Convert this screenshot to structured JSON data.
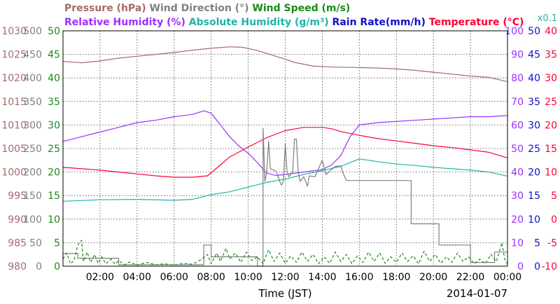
{
  "chart_data": {
    "type": "line",
    "legend_row1": [
      {
        "text": "Pressure (hPa)",
        "color": "#a36b6b"
      },
      {
        "text": "Wind Direction (°)",
        "color": "#808080"
      },
      {
        "text": "Wind Speed (m/s)",
        "color": "#1a8a1a"
      }
    ],
    "legend_row2": [
      {
        "text": "Relative Humidity (%)",
        "color": "#9b30ff"
      },
      {
        "text": "Absolute Humidity (g/m³)",
        "color": "#20b2aa"
      },
      {
        "text": "Rain Rate(mm/h)",
        "color": "#1010cc"
      },
      {
        "text": "Temperature (°C)",
        "color": "#ff0033"
      }
    ],
    "rain_scale_note": "x0.1",
    "xlabel": "Time (JST)",
    "date": "2014-01-07",
    "x_range_hours": [
      0,
      24
    ],
    "x_ticks": [
      "02:00",
      "04:00",
      "06:00",
      "08:00",
      "10:00",
      "12:00",
      "14:00",
      "16:00",
      "18:00",
      "20:00",
      "22:00",
      "00:00"
    ],
    "left_axes": [
      {
        "name": "pressure",
        "color": "#a36b6b",
        "ticks": [
          "980",
          "985",
          "990",
          "995",
          "1000",
          "1005",
          "1010",
          "1015",
          "1020",
          "1025",
          "1030"
        ],
        "range": [
          980,
          1030
        ]
      },
      {
        "name": "wind_direction",
        "color": "#808080",
        "ticks": [
          "0",
          "50",
          "100",
          "150",
          "200",
          "250",
          "300",
          "350",
          "400",
          "450",
          "500"
        ],
        "range": [
          0,
          500
        ]
      },
      {
        "name": "wind_speed",
        "color": "#1a8a1a",
        "ticks": [
          "0",
          "5",
          "10",
          "15",
          "20",
          "25",
          "30",
          "35",
          "40",
          "45",
          "50"
        ],
        "range": [
          0,
          50
        ]
      }
    ],
    "right_axes": [
      {
        "name": "relative_humidity",
        "color": "#9b30ff",
        "ticks": [
          "0",
          "10",
          "20",
          "30",
          "40",
          "50",
          "60",
          "70",
          "80",
          "90",
          "100"
        ],
        "range": [
          0,
          100
        ]
      },
      {
        "name": "rain_rate",
        "color": "#1010cc",
        "ticks": [
          "0",
          "5",
          "10",
          "15",
          "20",
          "25",
          "30",
          "35",
          "40",
          "45",
          "50"
        ],
        "range": [
          0,
          50
        ]
      },
      {
        "name": "temperature",
        "color": "#ff0033",
        "ticks": [
          "-10",
          "-5",
          "0",
          "5",
          "10",
          "15",
          "20",
          "25",
          "30",
          "35",
          "40"
        ],
        "range": [
          -10,
          40
        ]
      }
    ],
    "grid": true,
    "series": [
      {
        "name": "Pressure (hPa)",
        "axis": "pressure",
        "color": "#a36b6b",
        "points": [
          [
            0,
            1023.5
          ],
          [
            1,
            1023.2
          ],
          [
            2,
            1023.6
          ],
          [
            3,
            1024.2
          ],
          [
            4,
            1024.6
          ],
          [
            5,
            1025.0
          ],
          [
            6,
            1025.4
          ],
          [
            7,
            1025.9
          ],
          [
            8,
            1026.3
          ],
          [
            9,
            1026.6
          ],
          [
            9.7,
            1026.5
          ],
          [
            10.5,
            1025.8
          ],
          [
            11.5,
            1024.6
          ],
          [
            12.5,
            1023.3
          ],
          [
            13.5,
            1022.5
          ],
          [
            14.5,
            1022.3
          ],
          [
            16,
            1022.2
          ],
          [
            17,
            1022.1
          ],
          [
            18,
            1021.9
          ],
          [
            19,
            1021.6
          ],
          [
            20,
            1021.2
          ],
          [
            21,
            1020.8
          ],
          [
            22,
            1020.4
          ],
          [
            23,
            1020.1
          ],
          [
            24,
            1019.2
          ]
        ]
      },
      {
        "name": "Relative Humidity (%)",
        "axis": "relative_humidity",
        "color": "#9b30ff",
        "points": [
          [
            0,
            53
          ],
          [
            1,
            55
          ],
          [
            2,
            57
          ],
          [
            3,
            59
          ],
          [
            4,
            61
          ],
          [
            5,
            62
          ],
          [
            6,
            63.5
          ],
          [
            7,
            64.5
          ],
          [
            7.6,
            66
          ],
          [
            8,
            65
          ],
          [
            8.5,
            60
          ],
          [
            9,
            55
          ],
          [
            9.5,
            51
          ],
          [
            10,
            48
          ],
          [
            10.5,
            44
          ],
          [
            11,
            39.5
          ],
          [
            11.5,
            38.5
          ],
          [
            12,
            39
          ],
          [
            13,
            40
          ],
          [
            14,
            41
          ],
          [
            14.5,
            43
          ],
          [
            15,
            47
          ],
          [
            15.5,
            55
          ],
          [
            16,
            60
          ],
          [
            17,
            61
          ],
          [
            18,
            61.5
          ],
          [
            19,
            62
          ],
          [
            20,
            62.5
          ],
          [
            21,
            63
          ],
          [
            22,
            63.5
          ],
          [
            23,
            63.5
          ],
          [
            24,
            64
          ]
        ]
      },
      {
        "name": "Absolute Humidity (g/m³)",
        "axis": "wind_speed",
        "color": "#20b2aa",
        "points": [
          [
            0,
            13.8
          ],
          [
            2,
            14.1
          ],
          [
            4,
            14.2
          ],
          [
            6,
            14.0
          ],
          [
            7,
            14.2
          ],
          [
            8,
            15.2
          ],
          [
            9,
            15.8
          ],
          [
            10,
            16.8
          ],
          [
            11,
            17.8
          ],
          [
            12,
            18.5
          ],
          [
            13,
            19.5
          ],
          [
            14,
            20.3
          ],
          [
            15,
            21.2
          ],
          [
            16,
            22.8
          ],
          [
            17,
            22.2
          ],
          [
            18,
            21.7
          ],
          [
            19,
            21.4
          ],
          [
            20,
            21.0
          ],
          [
            21,
            20.7
          ],
          [
            22,
            20.4
          ],
          [
            23,
            20.0
          ],
          [
            24,
            19.1
          ]
        ]
      },
      {
        "name": "Temperature (°C)",
        "axis": "temperature",
        "color": "#ff0033",
        "points": [
          [
            0,
            11
          ],
          [
            1,
            10.7
          ],
          [
            2,
            10.4
          ],
          [
            3,
            10.0
          ],
          [
            4,
            9.6
          ],
          [
            5,
            9.2
          ],
          [
            6,
            8.9
          ],
          [
            7,
            8.9
          ],
          [
            7.8,
            9.2
          ],
          [
            8.5,
            11.5
          ],
          [
            9,
            13.2
          ],
          [
            10,
            15.3
          ],
          [
            11,
            17.3
          ],
          [
            12,
            18.8
          ],
          [
            13,
            19.5
          ],
          [
            14,
            19.5
          ],
          [
            14.5,
            19.2
          ],
          [
            15,
            18.6
          ],
          [
            16,
            17.8
          ],
          [
            17,
            17.1
          ],
          [
            18,
            16.6
          ],
          [
            19,
            16.1
          ],
          [
            20,
            15.6
          ],
          [
            21,
            15.2
          ],
          [
            22,
            14.7
          ],
          [
            23,
            14.2
          ],
          [
            24,
            13.0
          ]
        ]
      },
      {
        "name": "Wind Direction (°)",
        "axis": "wind_direction",
        "color": "#808080",
        "points": [
          [
            0,
            27
          ],
          [
            0.8,
            27
          ],
          [
            0.8,
            17
          ],
          [
            2.5,
            17
          ],
          [
            3,
            17
          ],
          [
            3,
            3
          ],
          [
            7.6,
            3
          ],
          [
            7.6,
            45
          ],
          [
            8.0,
            45
          ],
          [
            8.0,
            20
          ],
          [
            10.5,
            20
          ],
          [
            10.5,
            0
          ],
          [
            10.8,
            0
          ],
          [
            10.8,
            293
          ],
          [
            10.9,
            180
          ],
          [
            11.0,
            200
          ],
          [
            11.1,
            265
          ],
          [
            11.2,
            207
          ],
          [
            11.5,
            202
          ],
          [
            11.7,
            180
          ],
          [
            11.8,
            172
          ],
          [
            11.9,
            180
          ],
          [
            12.0,
            260
          ],
          [
            12.1,
            200
          ],
          [
            12.2,
            190
          ],
          [
            12.4,
            200
          ],
          [
            12.5,
            270
          ],
          [
            12.6,
            270
          ],
          [
            12.7,
            200
          ],
          [
            12.8,
            180
          ],
          [
            13.0,
            190
          ],
          [
            13.2,
            170
          ],
          [
            13.3,
            192
          ],
          [
            13.6,
            190
          ],
          [
            14.0,
            225
          ],
          [
            14.2,
            195
          ],
          [
            14.5,
            205
          ],
          [
            14.7,
            212
          ],
          [
            15.0,
            213
          ],
          [
            15.1,
            200
          ],
          [
            15.3,
            182
          ],
          [
            18.8,
            182
          ],
          [
            18.8,
            90
          ],
          [
            20.3,
            90
          ],
          [
            20.3,
            45
          ],
          [
            22,
            45
          ],
          [
            22,
            8
          ],
          [
            23.3,
            8
          ],
          [
            23.3,
            30
          ],
          [
            24,
            30
          ]
        ]
      },
      {
        "name": "Wind Speed (m/s)",
        "axis": "wind_speed",
        "color": "#1a8a1a",
        "dashed": true,
        "points": [
          [
            0,
            1.5
          ],
          [
            0.2,
            2.8
          ],
          [
            0.4,
            0.5
          ],
          [
            0.6,
            1.2
          ],
          [
            0.8,
            4.5
          ],
          [
            1.0,
            5.5
          ],
          [
            1.1,
            1.0
          ],
          [
            1.3,
            3.0
          ],
          [
            1.5,
            0.8
          ],
          [
            1.7,
            2.5
          ],
          [
            1.9,
            0.6
          ],
          [
            2.1,
            2.0
          ],
          [
            2.3,
            0.5
          ],
          [
            2.6,
            1.5
          ],
          [
            2.8,
            0.4
          ],
          [
            3.0,
            1.2
          ],
          [
            3.3,
            0.3
          ],
          [
            3.6,
            0.9
          ],
          [
            4.0,
            0.2
          ],
          [
            4.5,
            0.8
          ],
          [
            5.0,
            0.3
          ],
          [
            5.5,
            0.5
          ],
          [
            6.0,
            0.2
          ],
          [
            6.5,
            0.6
          ],
          [
            7.0,
            0.4
          ],
          [
            7.5,
            1.5
          ],
          [
            7.8,
            2.5
          ],
          [
            8.0,
            0.5
          ],
          [
            8.3,
            2.8
          ],
          [
            8.5,
            1.0
          ],
          [
            8.8,
            3.8
          ],
          [
            9.0,
            1.5
          ],
          [
            9.3,
            2.8
          ],
          [
            9.6,
            0.8
          ],
          [
            9.9,
            3.0
          ],
          [
            10.2,
            1.2
          ],
          [
            10.5,
            2.0
          ],
          [
            10.8,
            0.5
          ],
          [
            11.1,
            3.5
          ],
          [
            11.4,
            1.0
          ],
          [
            11.7,
            2.8
          ],
          [
            12.0,
            0.6
          ],
          [
            12.3,
            2.2
          ],
          [
            12.6,
            0.8
          ],
          [
            12.9,
            3.0
          ],
          [
            13.2,
            1.0
          ],
          [
            13.5,
            2.5
          ],
          [
            13.8,
            0.5
          ],
          [
            14.1,
            2.0
          ],
          [
            14.4,
            0.6
          ],
          [
            14.7,
            3.0
          ],
          [
            15.0,
            1.0
          ],
          [
            15.3,
            2.5
          ],
          [
            15.6,
            0.5
          ],
          [
            15.9,
            2.2
          ],
          [
            16.2,
            0.8
          ],
          [
            16.5,
            3.0
          ],
          [
            16.8,
            1.0
          ],
          [
            17.1,
            2.8
          ],
          [
            17.4,
            0.6
          ],
          [
            17.7,
            2.0
          ],
          [
            18.0,
            0.8
          ],
          [
            18.3,
            2.8
          ],
          [
            18.6,
            1.0
          ],
          [
            18.9,
            2.2
          ],
          [
            19.2,
            0.5
          ],
          [
            19.5,
            3.2
          ],
          [
            19.8,
            1.0
          ],
          [
            20.1,
            2.5
          ],
          [
            20.4,
            0.6
          ],
          [
            20.7,
            2.0
          ],
          [
            21.0,
            0.8
          ],
          [
            21.3,
            2.8
          ],
          [
            21.6,
            1.0
          ],
          [
            21.9,
            2.0
          ],
          [
            22.2,
            0.5
          ],
          [
            22.5,
            1.5
          ],
          [
            22.8,
            0.5
          ],
          [
            23.1,
            2.5
          ],
          [
            23.4,
            1.0
          ],
          [
            23.7,
            5.0
          ],
          [
            23.85,
            1.5
          ],
          [
            24,
            0.5
          ]
        ]
      }
    ]
  }
}
